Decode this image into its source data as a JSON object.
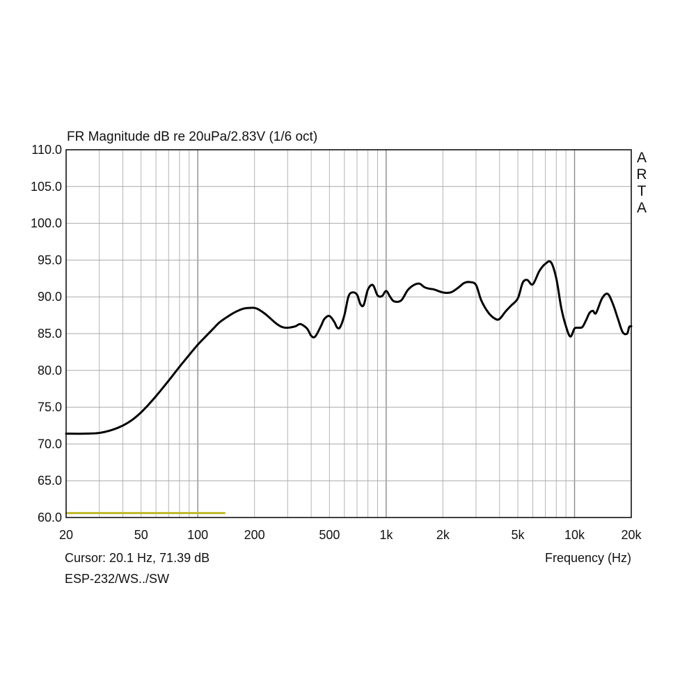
{
  "chart_data": {
    "type": "line",
    "title": "FR Magnitude dB re 20uPa/2.83V (1/6 oct)",
    "xlabel": "Frequency (Hz)",
    "ylabel": "",
    "x_scale": "log",
    "xlim": [
      20,
      20000
    ],
    "ylim": [
      60,
      110
    ],
    "grid": true,
    "x_ticks": [
      {
        "value": 20,
        "label": "20"
      },
      {
        "value": 50,
        "label": "50"
      },
      {
        "value": 100,
        "label": "100"
      },
      {
        "value": 200,
        "label": "200"
      },
      {
        "value": 500,
        "label": "500"
      },
      {
        "value": 1000,
        "label": "1k"
      },
      {
        "value": 2000,
        "label": "2k"
      },
      {
        "value": 5000,
        "label": "5k"
      },
      {
        "value": 10000,
        "label": "10k"
      },
      {
        "value": 20000,
        "label": "20k"
      }
    ],
    "y_ticks": [
      {
        "value": 110,
        "label": "110.0"
      },
      {
        "value": 105,
        "label": "105.0"
      },
      {
        "value": 100,
        "label": "100.0"
      },
      {
        "value": 95,
        "label": "95.0"
      },
      {
        "value": 90,
        "label": "90.0"
      },
      {
        "value": 85,
        "label": "85.0"
      },
      {
        "value": 80,
        "label": "80.0"
      },
      {
        "value": 75,
        "label": "75.0"
      },
      {
        "value": 70,
        "label": "70.0"
      },
      {
        "value": 65,
        "label": "65.0"
      },
      {
        "value": 60,
        "label": "60.0"
      }
    ],
    "series": [
      {
        "color": "#000000",
        "x": [
          20,
          25,
          30,
          35,
          40,
          45,
          50,
          55,
          60,
          70,
          80,
          90,
          100,
          110,
          120,
          130,
          140,
          150,
          160,
          175,
          190,
          200,
          210,
          230,
          260,
          280,
          300,
          330,
          350,
          380,
          400,
          420,
          450,
          470,
          500,
          530,
          550,
          570,
          600,
          630,
          660,
          700,
          730,
          760,
          800,
          850,
          900,
          950,
          1000,
          1050,
          1100,
          1200,
          1300,
          1400,
          1500,
          1600,
          1700,
          1800,
          2000,
          2200,
          2400,
          2600,
          2800,
          3000,
          3200,
          3500,
          3800,
          4000,
          4300,
          4600,
          5000,
          5300,
          5600,
          6000,
          6500,
          7000,
          7500,
          8000,
          8500,
          9000,
          9500,
          10000,
          10500,
          11000,
          11500,
          12000,
          12500,
          13000,
          14000,
          15000,
          16000,
          17000,
          18000,
          19000,
          19500,
          20000
        ],
        "y": [
          71.4,
          71.4,
          71.5,
          71.9,
          72.5,
          73.3,
          74.3,
          75.4,
          76.5,
          78.6,
          80.5,
          82.1,
          83.5,
          84.6,
          85.6,
          86.5,
          87.1,
          87.6,
          88.0,
          88.4,
          88.5,
          88.5,
          88.3,
          87.6,
          86.4,
          85.9,
          85.8,
          86.0,
          86.3,
          85.7,
          84.7,
          84.6,
          86.0,
          87.0,
          87.4,
          86.6,
          85.8,
          85.9,
          87.5,
          90.0,
          90.6,
          90.3,
          89.0,
          88.9,
          91.0,
          91.6,
          90.2,
          90.1,
          90.8,
          90.0,
          89.4,
          89.5,
          90.9,
          91.6,
          91.8,
          91.3,
          91.1,
          91.0,
          90.6,
          90.6,
          91.2,
          91.9,
          92.0,
          91.6,
          89.5,
          87.8,
          87.0,
          87.0,
          88.0,
          88.8,
          89.8,
          91.9,
          92.3,
          91.7,
          93.5,
          94.5,
          94.7,
          92.5,
          88.5,
          86.0,
          84.6,
          85.7,
          85.8,
          85.9,
          86.8,
          87.8,
          88.1,
          87.8,
          89.8,
          90.4,
          89.0,
          87.0,
          85.2,
          85.0,
          85.9,
          86.0
        ]
      }
    ],
    "legend": [
      {
        "color": "#bfb827",
        "x_range": [
          20,
          140
        ],
        "y": 60.6
      }
    ],
    "annotations": {
      "watermark": [
        "A",
        "R",
        "T",
        "A"
      ],
      "cursor": "Cursor: 20.1 Hz, 71.39 dB",
      "name": "ESP-232/WS../SW"
    }
  }
}
